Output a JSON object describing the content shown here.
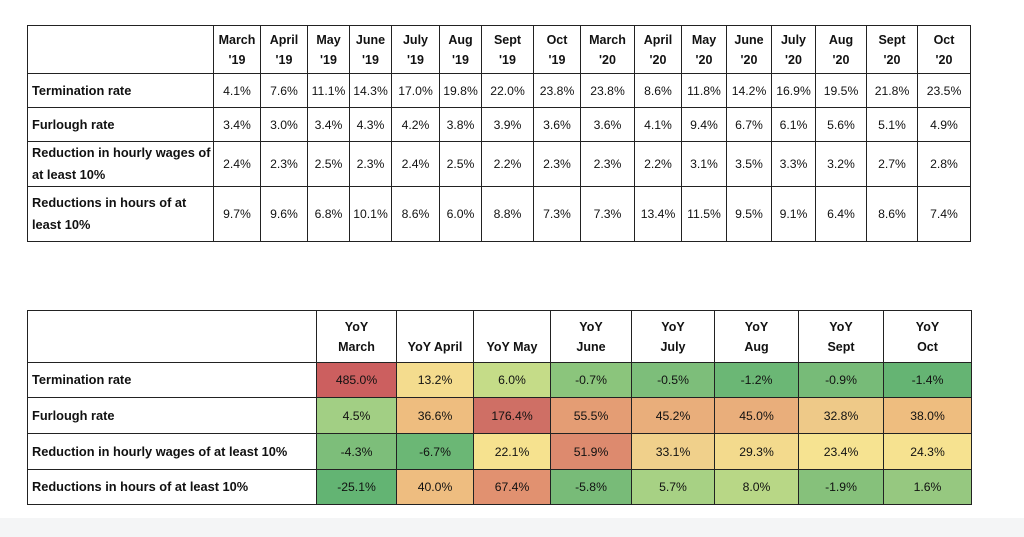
{
  "chart_data": [
    {
      "type": "table",
      "columns": [
        "March '19",
        "April '19",
        "May '19",
        "June '19",
        "July '19",
        "Aug '19",
        "Sept '19",
        "Oct '19",
        "March '20",
        "April '20",
        "May '20",
        "June '20",
        "July '20",
        "Aug '20",
        "Sept '20",
        "Oct '20"
      ],
      "column_headers": [
        {
          "line1": "March",
          "line2": "'19"
        },
        {
          "line1": "April",
          "line2": "'19"
        },
        {
          "line1": "May",
          "line2": "'19"
        },
        {
          "line1": "June",
          "line2": "'19"
        },
        {
          "line1": "July",
          "line2": "'19"
        },
        {
          "line1": "Aug",
          "line2": "'19"
        },
        {
          "line1": "Sept",
          "line2": "'19"
        },
        {
          "line1": "Oct",
          "line2": "'19"
        },
        {
          "line1": "March",
          "line2": "'20"
        },
        {
          "line1": "April",
          "line2": "'20"
        },
        {
          "line1": "May",
          "line2": "'20"
        },
        {
          "line1": "June",
          "line2": "'20"
        },
        {
          "line1": "July",
          "line2": "'20"
        },
        {
          "line1": "Aug",
          "line2": "'20"
        },
        {
          "line1": "Sept",
          "line2": "'20"
        },
        {
          "line1": "Oct",
          "line2": "'20"
        }
      ],
      "rows": [
        {
          "label": "Termination rate",
          "values": [
            "4.1%",
            "7.6%",
            "11.1%",
            "14.3%",
            "17.0%",
            "19.8%",
            "22.0%",
            "23.8%",
            "23.8%",
            "8.6%",
            "11.8%",
            "14.2%",
            "16.9%",
            "19.5%",
            "21.8%",
            "23.5%"
          ]
        },
        {
          "label": "Furlough rate",
          "values": [
            "3.4%",
            "3.0%",
            "3.4%",
            "4.3%",
            "4.2%",
            "3.8%",
            "3.9%",
            "3.6%",
            "3.6%",
            "4.1%",
            "9.4%",
            "6.7%",
            "6.1%",
            "5.6%",
            "5.1%",
            "4.9%"
          ]
        },
        {
          "label": "Reduction in hourly wages of at least 10%",
          "values": [
            "2.4%",
            "2.3%",
            "2.5%",
            "2.3%",
            "2.4%",
            "2.5%",
            "2.2%",
            "2.3%",
            "2.3%",
            "2.2%",
            "3.1%",
            "3.5%",
            "3.3%",
            "3.2%",
            "2.7%",
            "2.8%"
          ]
        },
        {
          "label": "Reductions in hours of at least 10%",
          "values": [
            "9.7%",
            "9.6%",
            "6.8%",
            "10.1%",
            "8.6%",
            "6.0%",
            "8.8%",
            "7.3%",
            "7.3%",
            "13.4%",
            "11.5%",
            "9.5%",
            "9.1%",
            "6.4%",
            "8.6%",
            "7.4%"
          ]
        }
      ]
    },
    {
      "type": "heatmap",
      "columns": [
        "YoY March",
        "YoY April",
        "YoY May",
        "YoY June",
        "YoY July",
        "YoY Aug",
        "YoY Sept",
        "YoY Oct"
      ],
      "column_headers": [
        {
          "line1": "YoY",
          "line2": "March"
        },
        {
          "line1": "",
          "line2": "YoY April"
        },
        {
          "line1": "",
          "line2": "YoY May"
        },
        {
          "line1": "YoY",
          "line2": "June"
        },
        {
          "line1": "YoY",
          "line2": "July"
        },
        {
          "line1": "YoY",
          "line2": "Aug"
        },
        {
          "line1": "YoY",
          "line2": "Sept"
        },
        {
          "line1": "YoY",
          "line2": "Oct"
        }
      ],
      "rows": [
        {
          "label": "Termination rate",
          "values": [
            "485.0%",
            "13.2%",
            "6.0%",
            "-0.7%",
            "-0.5%",
            "-1.2%",
            "-0.9%",
            "-1.4%"
          ],
          "colors": [
            "#cc5f5f",
            "#f4dc8e",
            "#c5dc88",
            "#8bc57c",
            "#7dbe7a",
            "#6bb775",
            "#77bb78",
            "#65b473"
          ]
        },
        {
          "label": "Furlough rate",
          "values": [
            "4.5%",
            "36.6%",
            "176.4%",
            "55.5%",
            "45.2%",
            "45.0%",
            "32.8%",
            "38.0%"
          ],
          "colors": [
            "#a2cf84",
            "#eebd7f",
            "#cf6f65",
            "#e49d74",
            "#e9ae7b",
            "#e9ae7b",
            "#eec988",
            "#eebd7f"
          ]
        },
        {
          "label": "Reduction in hourly wages of at least 10%",
          "values": [
            "-4.3%",
            "-6.7%",
            "22.1%",
            "51.9%",
            "33.1%",
            "29.3%",
            "23.4%",
            "24.3%"
          ],
          "colors": [
            "#7dbe7a",
            "#6bb775",
            "#f6e28f",
            "#dd8a6e",
            "#f0d08b",
            "#f3da8d",
            "#f6e391",
            "#f6e290"
          ]
        },
        {
          "label": "Reductions in hours of at least 10%",
          "values": [
            "-25.1%",
            "40.0%",
            "67.4%",
            "-5.8%",
            "5.7%",
            "8.0%",
            "-1.9%",
            "1.6%"
          ],
          "colors": [
            "#63b473",
            "#eebd80",
            "#e19170",
            "#78bb78",
            "#a7d184",
            "#b8d786",
            "#86c17b",
            "#96c880"
          ]
        }
      ]
    }
  ]
}
